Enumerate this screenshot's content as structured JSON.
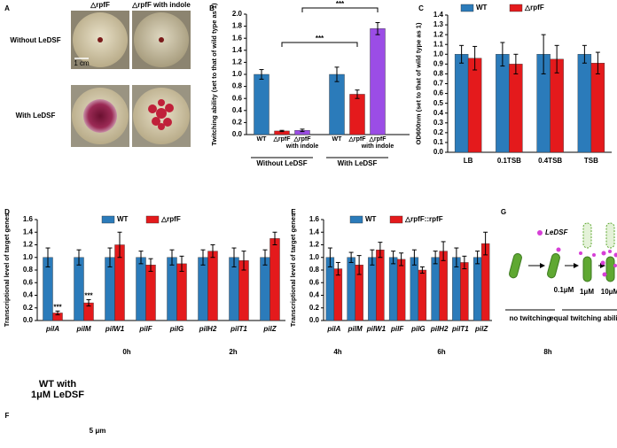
{
  "panel_letters": [
    "A",
    "B",
    "C",
    "D",
    "E",
    "F",
    "G"
  ],
  "panel_a": {
    "columns": [
      "△rpfF",
      "△rpfF with indole"
    ],
    "rows": [
      "Without LeDSF",
      "With LeDSF"
    ],
    "scale_bar": "1 cm"
  },
  "chart_data": [
    {
      "type": "bar",
      "ylabel": "Twitching ability (set to that of wild type as 1)",
      "categories": [
        "WT",
        "△rpfF",
        "△rpfF\nwith indole",
        "WT",
        "△rpfF",
        "△rpfF\nwith indole"
      ],
      "values": [
        1.0,
        0.06,
        0.07,
        1.0,
        0.67,
        1.76
      ],
      "errors": [
        0.08,
        0.01,
        0.02,
        0.12,
        0.07,
        0.1
      ],
      "colors": [
        "#2b7bba",
        "#e41a1c",
        "#9b4de6",
        "#2b7bba",
        "#e41a1c",
        "#9b4de6"
      ],
      "group_labels": [
        "Without LeDSF",
        "With LeDSF"
      ],
      "annotations": [
        "***",
        "***"
      ],
      "ylim": [
        0,
        2.0
      ],
      "yticks": [
        {
          "value": 0,
          "label": "0.0"
        },
        0.2,
        0.4,
        0.6,
        0.8,
        {
          "value": 1,
          "label": "1.0"
        },
        1.2,
        1.4,
        1.6,
        1.8,
        {
          "value": 2,
          "label": "2.0"
        }
      ]
    },
    {
      "type": "bar",
      "ylabel": "OD600nm (set to that of wild type as 1)",
      "categories": [
        "LB",
        "0.1TSB",
        "0.4TSB",
        "TSB"
      ],
      "series": [
        {
          "name": "WT",
          "color": "#2b7bba",
          "values": [
            1.0,
            1.0,
            1.0,
            1.0
          ],
          "errors": [
            0.09,
            0.12,
            0.2,
            0.09
          ]
        },
        {
          "name": "△rpfF",
          "color": "#e41a1c",
          "values": [
            0.96,
            0.9,
            0.95,
            0.91
          ],
          "errors": [
            0.12,
            0.1,
            0.14,
            0.11
          ]
        }
      ],
      "ylim": [
        0,
        1.4
      ],
      "yticks": [
        {
          "value": 0,
          "label": "0.0"
        },
        0.1,
        0.2,
        0.3,
        0.4,
        0.5,
        0.6,
        0.7,
        0.8,
        0.9,
        {
          "value": 1,
          "label": "1.0"
        },
        1.1,
        1.2,
        1.3,
        1.4
      ],
      "legend": "top"
    },
    {
      "type": "bar",
      "ylabel": "Transcriptional level of target genes",
      "categories": [
        "pilA",
        "pilM",
        "pilW1",
        "pilF",
        "pilG",
        "pilH2",
        "pilT1",
        "pilZ"
      ],
      "series": [
        {
          "name": "WT",
          "color": "#2b7bba",
          "values": [
            1,
            1,
            1,
            1,
            1,
            1,
            1,
            1
          ],
          "errors": [
            0.15,
            0.12,
            0.15,
            0.1,
            0.12,
            0.12,
            0.15,
            0.12
          ]
        },
        {
          "name": "△rpfF",
          "color": "#e41a1c",
          "values": [
            0.12,
            0.28,
            1.2,
            0.88,
            0.9,
            1.1,
            0.95,
            1.3
          ],
          "errors": [
            0.03,
            0.05,
            0.2,
            0.1,
            0.12,
            0.1,
            0.15,
            0.1
          ],
          "annotations": [
            "***",
            "***",
            null,
            null,
            null,
            null,
            null,
            null
          ]
        }
      ],
      "ylim": [
        0,
        1.6
      ],
      "yticks": [
        {
          "value": 0,
          "label": "0.0"
        },
        0.2,
        0.4,
        0.6,
        0.8,
        {
          "value": 1,
          "label": "1.0"
        },
        1.2,
        1.4,
        1.6
      ],
      "legend": "top"
    },
    {
      "type": "bar",
      "ylabel": "Transcriptional level of target genes",
      "categories": [
        "pilA",
        "pilM",
        "pilW1",
        "pilF",
        "pilG",
        "pilH2",
        "pilT1",
        "pilZ"
      ],
      "series": [
        {
          "name": "WT",
          "color": "#2b7bba",
          "values": [
            1,
            1,
            1,
            1,
            1,
            1,
            1,
            1
          ],
          "errors": [
            0.15,
            0.08,
            0.12,
            0.1,
            0.12,
            0.1,
            0.15,
            0.1
          ]
        },
        {
          "name": "△rpfF::rpfF",
          "color": "#e41a1c",
          "values": [
            0.82,
            0.88,
            1.12,
            0.97,
            0.8,
            1.1,
            0.92,
            1.22
          ],
          "errors": [
            0.1,
            0.15,
            0.12,
            0.1,
            0.05,
            0.15,
            0.1,
            0.18
          ]
        }
      ],
      "ylim": [
        0,
        1.6
      ],
      "yticks": [
        {
          "value": 0,
          "label": "0.0"
        },
        0.2,
        0.4,
        0.6,
        0.8,
        {
          "value": 1,
          "label": "1.0"
        },
        1.2,
        1.4,
        1.6
      ],
      "legend": "top"
    }
  ],
  "panel_f": {
    "label": "WT with\n1μM LeDSF",
    "times": [
      "0h",
      "2h",
      "4h",
      "6h",
      "8h"
    ],
    "scale_bar": "5 μm"
  },
  "panel_g": {
    "legend": "LeDSF",
    "concentrations": [
      "0.1μM",
      "1μM",
      "10μM"
    ],
    "outcomes": [
      "no twitching",
      "equal twitching ability"
    ]
  }
}
